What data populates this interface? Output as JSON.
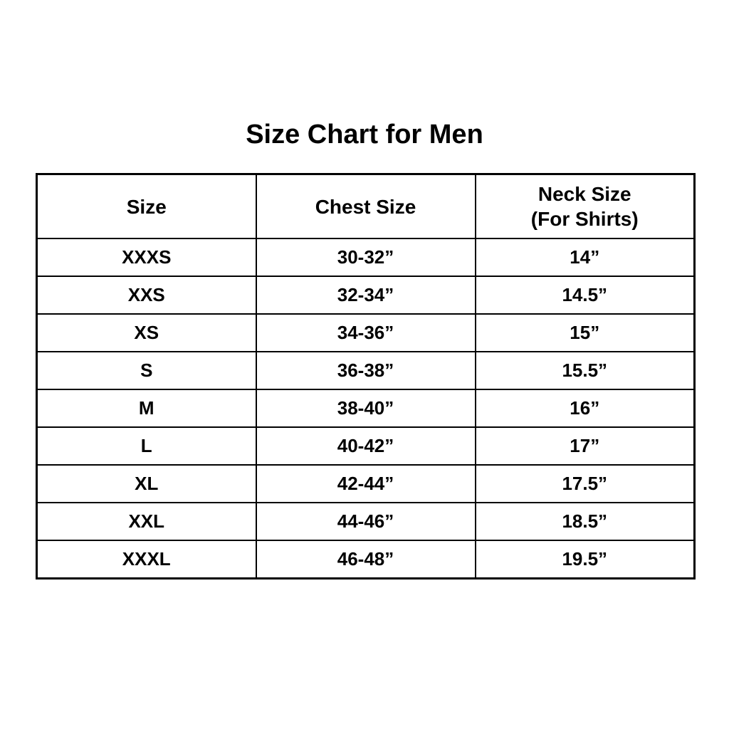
{
  "title": "Size Chart for Men",
  "table": {
    "header": {
      "size": "Size",
      "chest": "Chest Size",
      "neck_line1": "Neck Size",
      "neck_line2": "(For Shirts)"
    },
    "rows": [
      [
        "XXXS",
        "30-32”",
        "14”"
      ],
      [
        "XXS",
        "32-34”",
        "14.5”"
      ],
      [
        "XS",
        "34-36”",
        "15”"
      ],
      [
        "S",
        "36-38”",
        "15.5”"
      ],
      [
        "M",
        "38-40”",
        "16”"
      ],
      [
        "L",
        "40-42”",
        "17”"
      ],
      [
        "XL",
        "42-44”",
        "17.5”"
      ],
      [
        "XXL",
        "44-46”",
        "18.5”"
      ],
      [
        "XXXL",
        "46-48”",
        "19.5”"
      ]
    ]
  },
  "colors": {
    "background": "#ffffff",
    "text": "#000000",
    "border": "#000000"
  },
  "chart_data": {
    "type": "table",
    "title": "Size Chart for Men",
    "columns": [
      "Size",
      "Chest Size",
      "Neck Size (For Shirts)"
    ],
    "rows": [
      [
        "XXXS",
        "30-32”",
        "14”"
      ],
      [
        "XXS",
        "32-34”",
        "14.5”"
      ],
      [
        "XS",
        "34-36”",
        "15”"
      ],
      [
        "S",
        "36-38”",
        "15.5”"
      ],
      [
        "M",
        "38-40”",
        "16”"
      ],
      [
        "L",
        "40-42”",
        "17”"
      ],
      [
        "XL",
        "42-44”",
        "17.5”"
      ],
      [
        "XXL",
        "44-46”",
        "18.5”"
      ],
      [
        "XXXL",
        "46-48”",
        "19.5”"
      ]
    ],
    "layout": {
      "grid": true,
      "text_align": "center",
      "font_weight": "bold"
    }
  }
}
